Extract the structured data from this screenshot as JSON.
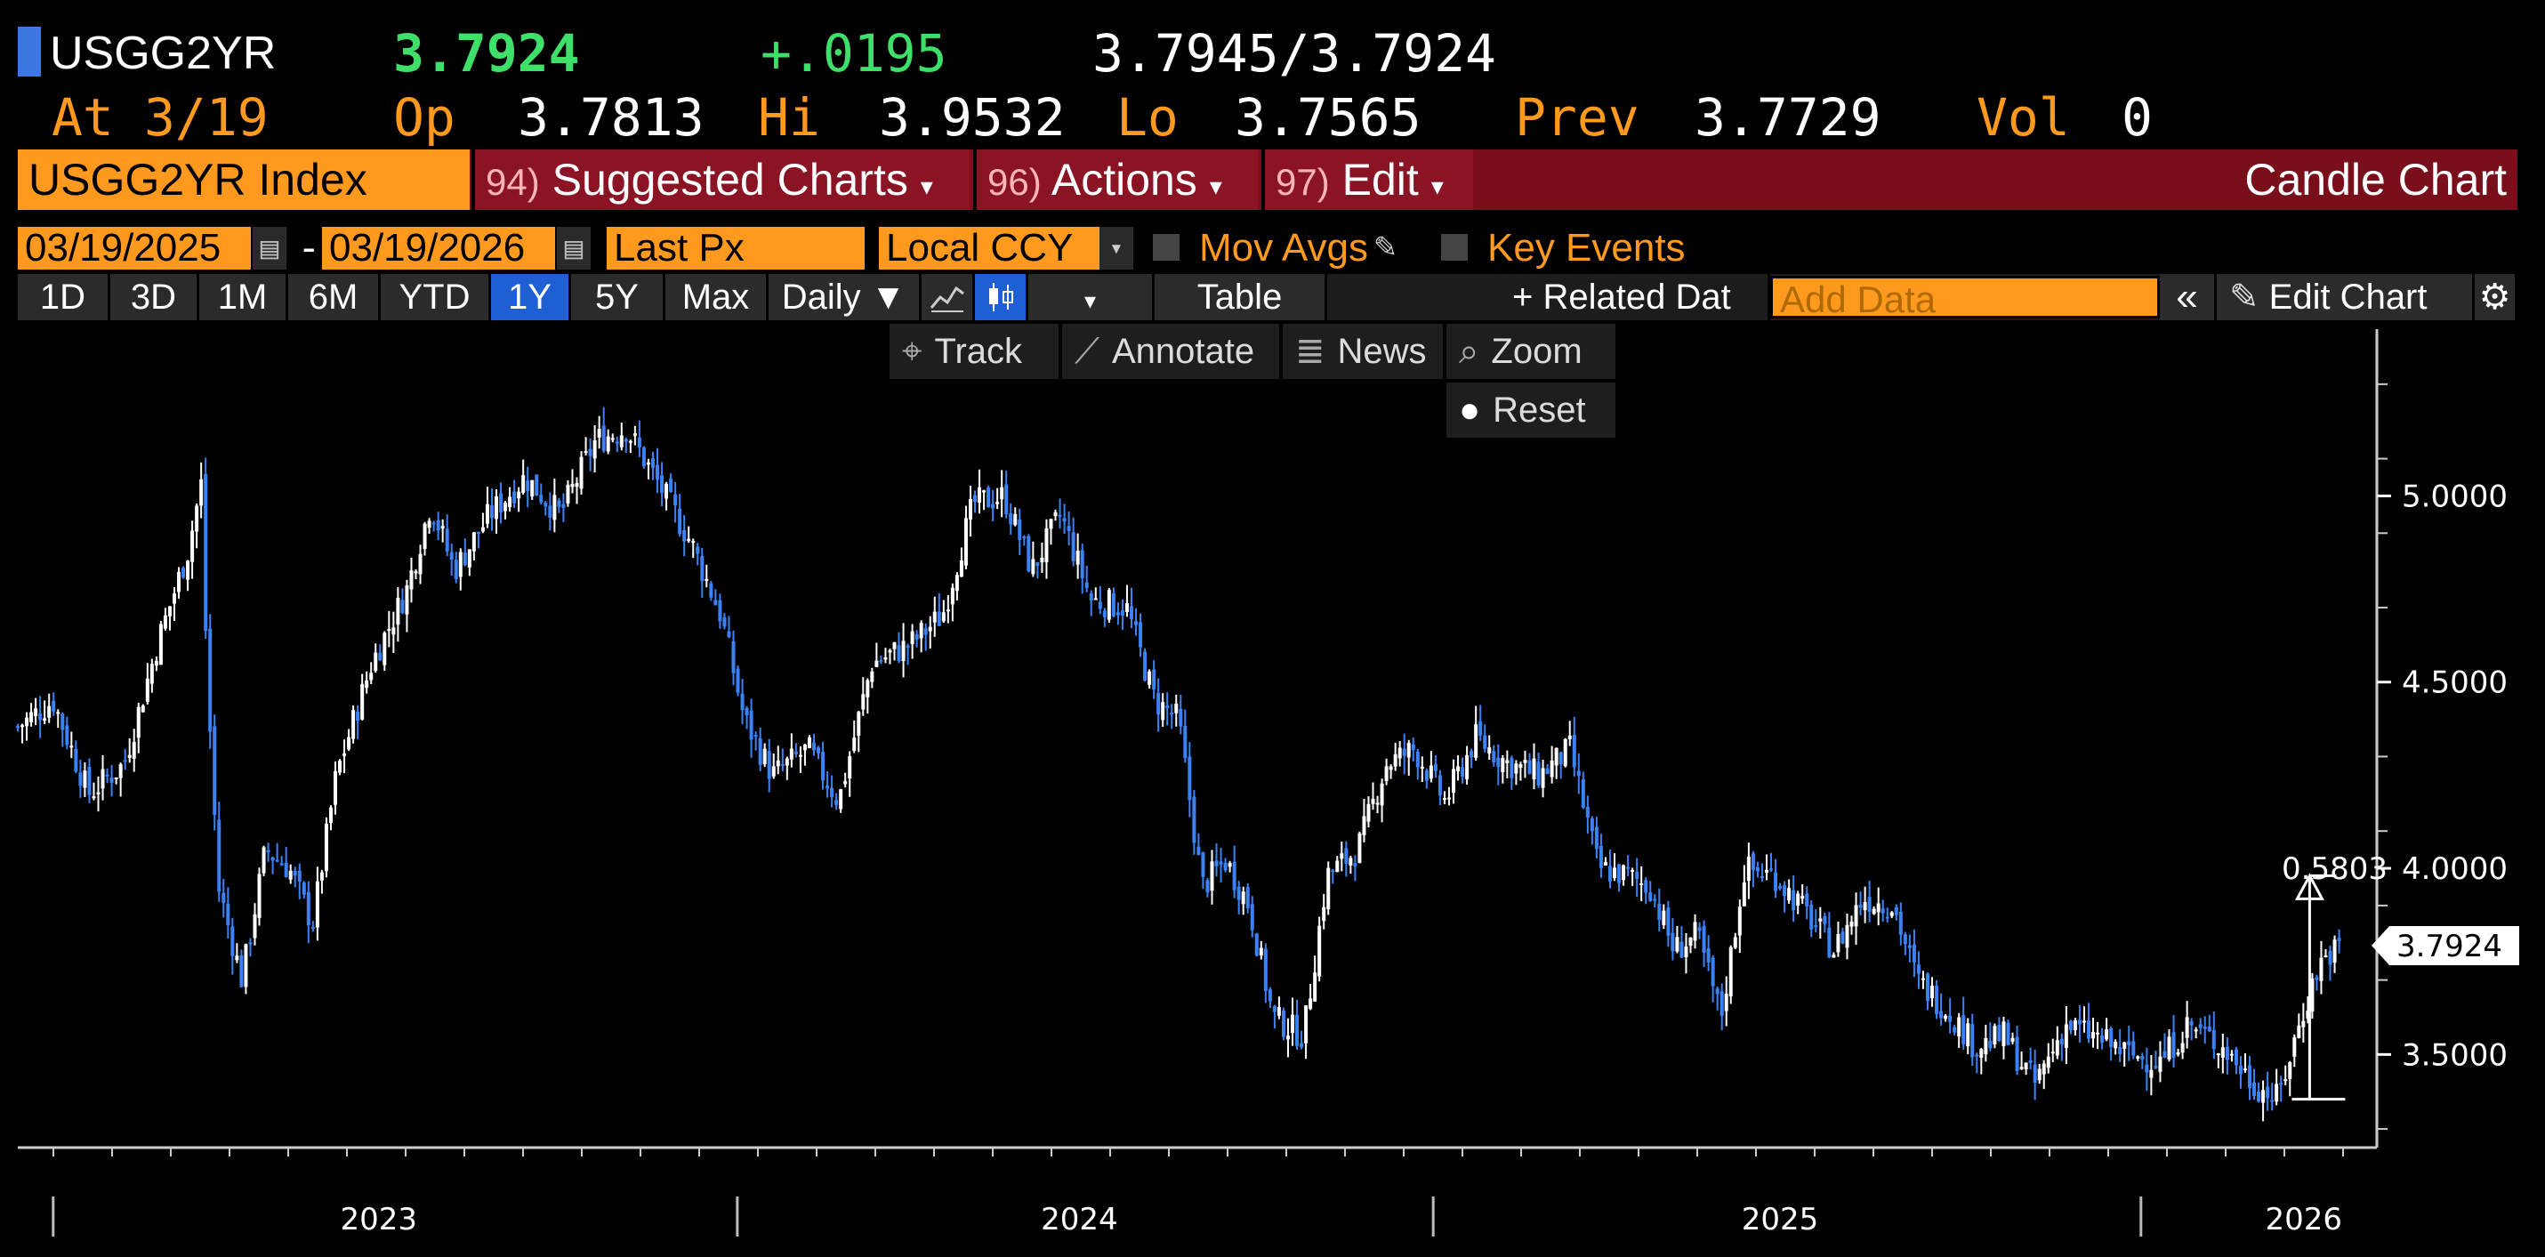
{
  "quote": {
    "ticker": "USGG2YR",
    "last": "3.7924",
    "change": "+.0195",
    "bid_ask": "3.7945/3.7924",
    "at_label": "At",
    "at_date": "3/19",
    "open_label": "Op",
    "open": "3.7813",
    "high_label": "Hi",
    "high": "3.9532",
    "low_label": "Lo",
    "low": "3.7565",
    "prev_label": "Prev",
    "prev": "3.7729",
    "vol_label": "Vol",
    "vol": "0"
  },
  "function_bar": {
    "security": "USGG2YR Index",
    "menus": [
      {
        "num": "94)",
        "label": "Suggested Charts"
      },
      {
        "num": "96)",
        "label": "Actions"
      },
      {
        "num": "97)",
        "label": "Edit"
      }
    ],
    "title": "Candle Chart"
  },
  "controls": {
    "start_date": "03/19/2025",
    "date_sep": "-",
    "end_date": "03/19/2026",
    "field": "Last Px",
    "currency": "Local CCY",
    "mov_avgs": "Mov Avgs",
    "key_events": "Key Events",
    "ranges": [
      "1D",
      "3D",
      "1M",
      "6M",
      "YTD",
      "1Y",
      "5Y",
      "Max"
    ],
    "selected_range": "1Y",
    "frequency": "Daily ▼",
    "table": "Table",
    "related": "+ Related Dat",
    "add_data_placeholder": "Add Data",
    "edit_chart": "Edit Chart"
  },
  "chart_tools": {
    "track": "Track",
    "annotate": "Annotate",
    "news": "News",
    "zoom": "Zoom",
    "reset": "Reset"
  },
  "colors": {
    "accent_orange": "#ff9a1f",
    "up_candle": "#ffffff",
    "down_candle": "#3b82f6",
    "bar_red": "#7a0f1c",
    "selected_blue": "#1f5fd4"
  },
  "chart_data": {
    "type": "candlestick",
    "title": "",
    "xlabel": "",
    "ylabel": "",
    "ylim": [
      3.25,
      5.4
    ],
    "yticks": [
      "5.0000",
      "4.5000",
      "4.0000",
      "3.5000"
    ],
    "xticks": [
      "2023",
      "2024",
      "2025",
      "2026"
    ],
    "last_value_label": "3.7924",
    "range_annotation": "0.5803",
    "series": [
      {
        "points": [
          {
            "t": 0.0,
            "v": 4.38
          },
          {
            "t": 0.015,
            "v": 4.45
          },
          {
            "t": 0.03,
            "v": 4.2
          },
          {
            "t": 0.045,
            "v": 4.28
          },
          {
            "t": 0.06,
            "v": 4.62
          },
          {
            "t": 0.072,
            "v": 4.85
          },
          {
            "t": 0.078,
            "v": 5.04
          },
          {
            "t": 0.08,
            "v": 4.55
          },
          {
            "t": 0.085,
            "v": 3.95
          },
          {
            "t": 0.095,
            "v": 3.7
          },
          {
            "t": 0.105,
            "v": 4.05
          },
          {
            "t": 0.115,
            "v": 4.0
          },
          {
            "t": 0.125,
            "v": 3.85
          },
          {
            "t": 0.135,
            "v": 4.25
          },
          {
            "t": 0.15,
            "v": 4.55
          },
          {
            "t": 0.165,
            "v": 4.75
          },
          {
            "t": 0.175,
            "v": 4.98
          },
          {
            "t": 0.185,
            "v": 4.8
          },
          {
            "t": 0.2,
            "v": 4.95
          },
          {
            "t": 0.215,
            "v": 5.05
          },
          {
            "t": 0.23,
            "v": 4.95
          },
          {
            "t": 0.245,
            "v": 5.15
          },
          {
            "t": 0.258,
            "v": 5.18
          },
          {
            "t": 0.27,
            "v": 5.05
          },
          {
            "t": 0.285,
            "v": 4.88
          },
          {
            "t": 0.298,
            "v": 4.68
          },
          {
            "t": 0.308,
            "v": 4.4
          },
          {
            "t": 0.32,
            "v": 4.25
          },
          {
            "t": 0.335,
            "v": 4.32
          },
          {
            "t": 0.348,
            "v": 4.18
          },
          {
            "t": 0.362,
            "v": 4.55
          },
          {
            "t": 0.378,
            "v": 4.6
          },
          {
            "t": 0.392,
            "v": 4.68
          },
          {
            "t": 0.405,
            "v": 4.98
          },
          {
            "t": 0.418,
            "v": 5.0
          },
          {
            "t": 0.43,
            "v": 4.8
          },
          {
            "t": 0.442,
            "v": 4.95
          },
          {
            "t": 0.455,
            "v": 4.72
          },
          {
            "t": 0.47,
            "v": 4.7
          },
          {
            "t": 0.482,
            "v": 4.45
          },
          {
            "t": 0.492,
            "v": 4.4
          },
          {
            "t": 0.502,
            "v": 3.95
          },
          {
            "t": 0.512,
            "v": 4.02
          },
          {
            "t": 0.522,
            "v": 3.9
          },
          {
            "t": 0.532,
            "v": 3.6
          },
          {
            "t": 0.545,
            "v": 3.55
          },
          {
            "t": 0.555,
            "v": 3.98
          },
          {
            "t": 0.568,
            "v": 4.05
          },
          {
            "t": 0.58,
            "v": 4.28
          },
          {
            "t": 0.592,
            "v": 4.32
          },
          {
            "t": 0.605,
            "v": 4.18
          },
          {
            "t": 0.618,
            "v": 4.35
          },
          {
            "t": 0.632,
            "v": 4.28
          },
          {
            "t": 0.645,
            "v": 4.25
          },
          {
            "t": 0.658,
            "v": 4.32
          },
          {
            "t": 0.67,
            "v": 4.0
          },
          {
            "t": 0.682,
            "v": 3.98
          },
          {
            "t": 0.692,
            "v": 3.95
          },
          {
            "t": 0.702,
            "v": 3.78
          },
          {
            "t": 0.712,
            "v": 3.82
          },
          {
            "t": 0.722,
            "v": 3.6
          },
          {
            "t": 0.732,
            "v": 4.0
          },
          {
            "t": 0.745,
            "v": 3.98
          },
          {
            "t": 0.758,
            "v": 3.88
          },
          {
            "t": 0.77,
            "v": 3.78
          },
          {
            "t": 0.782,
            "v": 3.92
          },
          {
            "t": 0.795,
            "v": 3.9
          },
          {
            "t": 0.805,
            "v": 3.7
          },
          {
            "t": 0.818,
            "v": 3.62
          },
          {
            "t": 0.83,
            "v": 3.52
          },
          {
            "t": 0.842,
            "v": 3.55
          },
          {
            "t": 0.855,
            "v": 3.42
          },
          {
            "t": 0.868,
            "v": 3.58
          },
          {
            "t": 0.88,
            "v": 3.55
          },
          {
            "t": 0.895,
            "v": 3.5
          },
          {
            "t": 0.908,
            "v": 3.48
          },
          {
            "t": 0.92,
            "v": 3.58
          },
          {
            "t": 0.935,
            "v": 3.52
          },
          {
            "t": 0.948,
            "v": 3.42
          },
          {
            "t": 0.958,
            "v": 3.38
          },
          {
            "t": 0.968,
            "v": 3.6
          },
          {
            "t": 0.976,
            "v": 3.75
          },
          {
            "t": 0.984,
            "v": 3.79
          }
        ]
      }
    ]
  }
}
